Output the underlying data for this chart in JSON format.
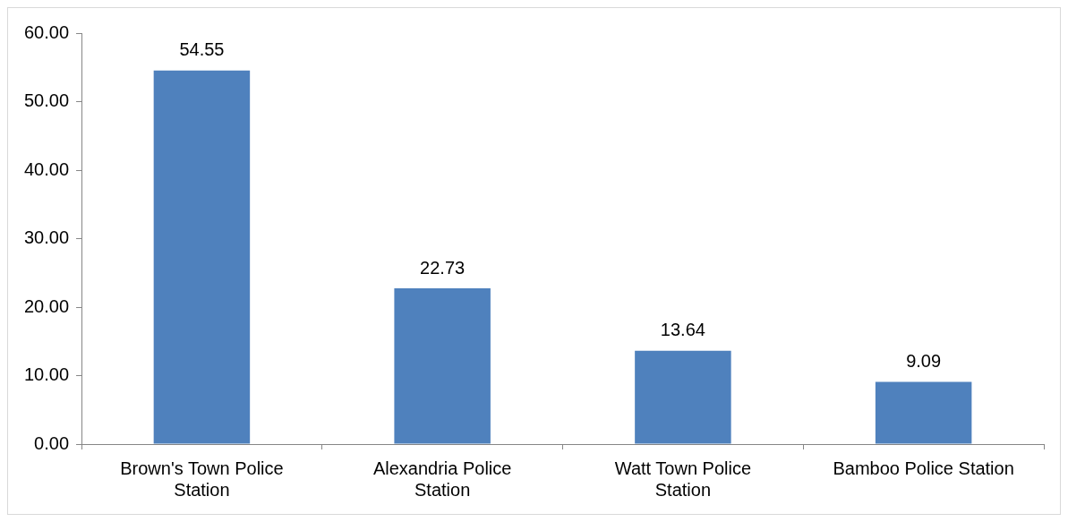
{
  "chart_data": {
    "type": "bar",
    "categories": [
      "Brown's Town Police Station",
      "Alexandria Police Station",
      "Watt Town Police Station",
      "Bamboo Police Station"
    ],
    "values": [
      54.55,
      22.73,
      13.64,
      9.09
    ],
    "color": "#4f81bd",
    "ylim": [
      0,
      60
    ],
    "yticks": [
      {
        "value": 0,
        "label": "0.00"
      },
      {
        "value": 10,
        "label": "10.00"
      },
      {
        "value": 20,
        "label": "20.00"
      },
      {
        "value": 30,
        "label": "30.00"
      },
      {
        "value": 40,
        "label": "40.00"
      },
      {
        "value": 50,
        "label": "50.00"
      },
      {
        "value": 60,
        "label": "60.00"
      }
    ],
    "data_labels": true,
    "grid": false,
    "legend": false
  }
}
